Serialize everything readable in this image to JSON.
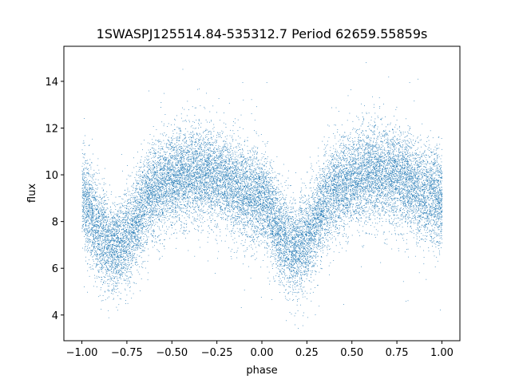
{
  "chart_data": {
    "type": "scatter",
    "title": "1SWASPJ125514.84-535312.7 Period 62659.55859s",
    "xlabel": "phase",
    "ylabel": "flux",
    "xlim": [
      -1.1,
      1.1
    ],
    "ylim": [
      2.9,
      15.5
    ],
    "x_ticks": [
      -1.0,
      -0.75,
      -0.5,
      -0.25,
      0.0,
      0.25,
      0.5,
      0.75,
      1.0
    ],
    "x_tick_labels": [
      "−1.00",
      "−0.75",
      "−0.50",
      "−0.25",
      "0.00",
      "0.25",
      "0.50",
      "0.75",
      "1.00"
    ],
    "y_ticks": [
      4,
      6,
      8,
      10,
      12,
      14
    ],
    "y_tick_labels": [
      "4",
      "6",
      "8",
      "10",
      "12",
      "14"
    ],
    "grid": false,
    "marker_color": "#1f77b4",
    "series": [
      {
        "phase_range": [
          -1.0,
          1.0
        ],
        "profile": [
          {
            "phase": -1.0,
            "flux": 9.0
          },
          {
            "phase": -0.95,
            "flux": 8.3
          },
          {
            "phase": -0.9,
            "flux": 7.5
          },
          {
            "phase": -0.85,
            "flux": 7.0
          },
          {
            "phase": -0.8,
            "flux": 6.9
          },
          {
            "phase": -0.75,
            "flux": 7.3
          },
          {
            "phase": -0.7,
            "flux": 8.0
          },
          {
            "phase": -0.65,
            "flux": 8.8
          },
          {
            "phase": -0.6,
            "flux": 9.4
          },
          {
            "phase": -0.5,
            "flux": 9.8
          },
          {
            "phase": -0.4,
            "flux": 10.1
          },
          {
            "phase": -0.3,
            "flux": 10.0
          },
          {
            "phase": -0.2,
            "flux": 9.8
          },
          {
            "phase": -0.1,
            "flux": 9.2
          },
          {
            "phase": 0.0,
            "flux": 9.0
          },
          {
            "phase": 0.05,
            "flux": 8.3
          },
          {
            "phase": 0.1,
            "flux": 7.5
          },
          {
            "phase": 0.15,
            "flux": 7.0
          },
          {
            "phase": 0.2,
            "flux": 6.9
          },
          {
            "phase": 0.25,
            "flux": 7.3
          },
          {
            "phase": 0.3,
            "flux": 8.0
          },
          {
            "phase": 0.35,
            "flux": 8.8
          },
          {
            "phase": 0.4,
            "flux": 9.4
          },
          {
            "phase": 0.5,
            "flux": 9.8
          },
          {
            "phase": 0.6,
            "flux": 10.1
          },
          {
            "phase": 0.7,
            "flux": 10.0
          },
          {
            "phase": 0.8,
            "flux": 9.8
          },
          {
            "phase": 0.9,
            "flux": 9.2
          },
          {
            "phase": 1.0,
            "flux": 9.0
          }
        ],
        "scatter_sd": 1.0,
        "approx_point_count": 20000
      }
    ]
  }
}
